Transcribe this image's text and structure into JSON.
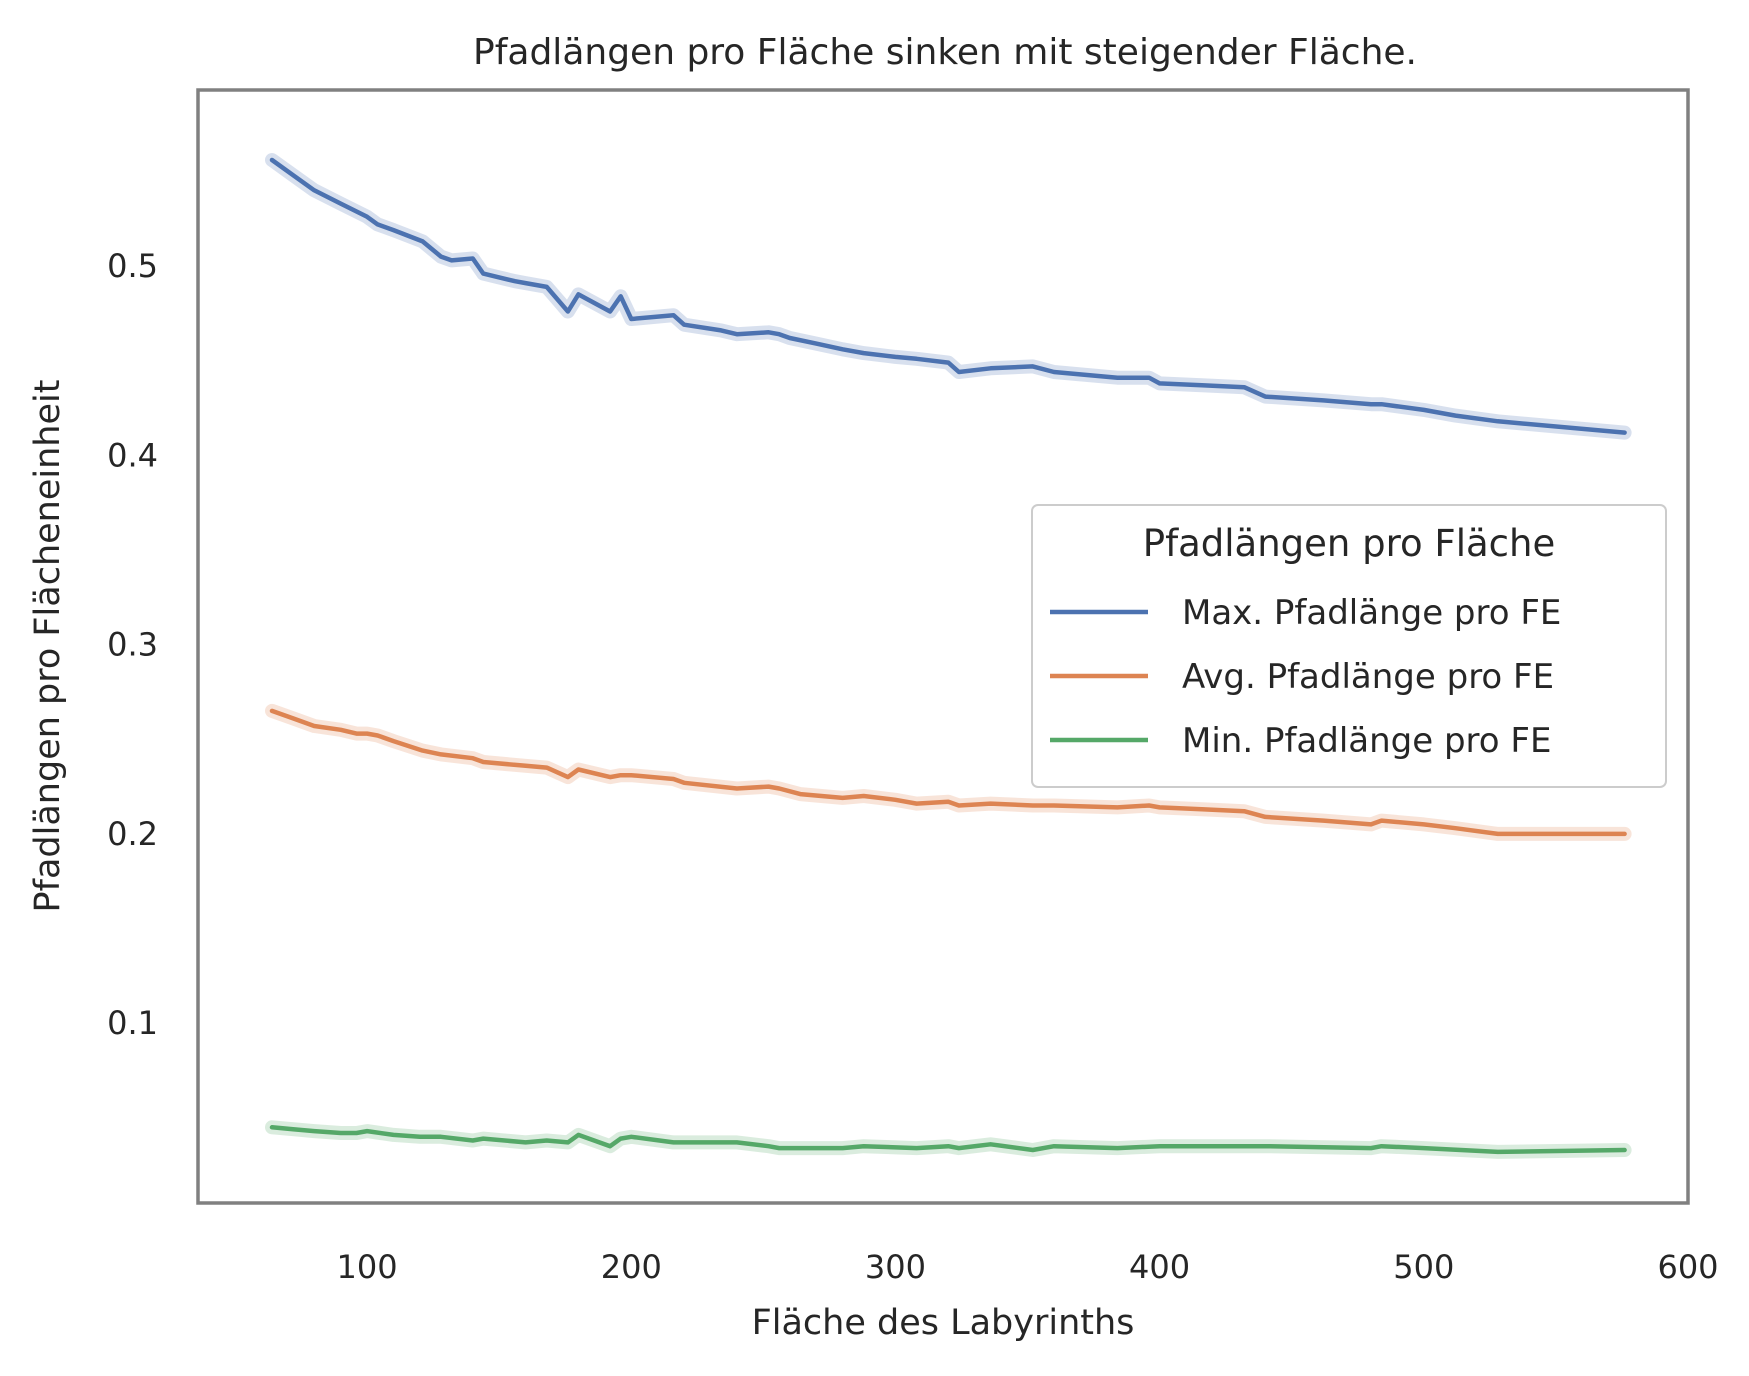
{
  "chart_data": {
    "type": "line",
    "title": "Pfadlängen pro Fläche sinken mit steigender Fläche.",
    "xlabel": "Fläche des Labyrinths",
    "ylabel": "Pfadlängen pro Flächeneinheit",
    "xlim": [
      36,
      600
    ],
    "ylim": [
      0.005,
      0.593
    ],
    "xticks": [
      100,
      200,
      300,
      400,
      500,
      600
    ],
    "yticks": [
      0.1,
      0.2,
      0.3,
      0.4,
      0.5
    ],
    "xtick_labels": [
      "100",
      "200",
      "300",
      "400",
      "500",
      "600"
    ],
    "ytick_labels": [
      "0.1",
      "0.2",
      "0.3",
      "0.4",
      "0.5"
    ],
    "grid": false,
    "legend": {
      "title": "Pfadlängen pro Fläche",
      "position": "center-right"
    },
    "series": [
      {
        "name": "Max. Pfadlänge pro FE",
        "color": "#4c72b0",
        "x": [
          64,
          72,
          80,
          90,
          100,
          104,
          110,
          121,
          128,
          132,
          140,
          144,
          150,
          156,
          160,
          168,
          176,
          180,
          192,
          196,
          200,
          216,
          220,
          234,
          240,
          252,
          256,
          260,
          270,
          280,
          288,
          300,
          308,
          320,
          324,
          336,
          352,
          360,
          384,
          396,
          400,
          416,
          432,
          440,
          462,
          480,
          484,
          500,
          512,
          528,
          576
        ],
        "y": [
          0.556,
          0.548,
          0.54,
          0.533,
          0.526,
          0.522,
          0.519,
          0.513,
          0.505,
          0.503,
          0.504,
          0.496,
          0.494,
          0.492,
          0.491,
          0.489,
          0.476,
          0.485,
          0.476,
          0.484,
          0.472,
          0.474,
          0.469,
          0.466,
          0.464,
          0.465,
          0.464,
          0.462,
          0.459,
          0.456,
          0.454,
          0.452,
          0.451,
          0.449,
          0.444,
          0.446,
          0.447,
          0.444,
          0.441,
          0.441,
          0.438,
          0.437,
          0.436,
          0.431,
          0.429,
          0.427,
          0.427,
          0.424,
          0.421,
          0.418,
          0.412
        ]
      },
      {
        "name": "Avg. Pfadlänge pro FE",
        "color": "#dd8452",
        "x": [
          64,
          72,
          80,
          90,
          96,
          100,
          104,
          110,
          121,
          128,
          140,
          144,
          160,
          168,
          176,
          180,
          192,
          196,
          200,
          216,
          220,
          240,
          252,
          256,
          264,
          280,
          288,
          300,
          308,
          320,
          324,
          336,
          352,
          360,
          384,
          396,
          400,
          416,
          432,
          440,
          462,
          480,
          484,
          500,
          512,
          528,
          540,
          576
        ],
        "y": [
          0.265,
          0.261,
          0.257,
          0.255,
          0.253,
          0.253,
          0.252,
          0.249,
          0.244,
          0.242,
          0.24,
          0.238,
          0.236,
          0.235,
          0.23,
          0.234,
          0.23,
          0.231,
          0.231,
          0.229,
          0.227,
          0.224,
          0.225,
          0.224,
          0.221,
          0.219,
          0.22,
          0.218,
          0.216,
          0.217,
          0.215,
          0.216,
          0.215,
          0.215,
          0.214,
          0.215,
          0.214,
          0.213,
          0.212,
          0.209,
          0.207,
          0.205,
          0.207,
          0.205,
          0.203,
          0.2,
          0.2,
          0.2
        ]
      },
      {
        "name": "Min. Pfadlänge pro FE",
        "color": "#55a868",
        "x": [
          64,
          72,
          80,
          90,
          96,
          100,
          110,
          120,
          128,
          140,
          144,
          160,
          168,
          176,
          180,
          192,
          196,
          200,
          216,
          220,
          240,
          252,
          256,
          264,
          280,
          288,
          308,
          320,
          324,
          336,
          352,
          360,
          384,
          400,
          432,
          440,
          480,
          484,
          500,
          528,
          576
        ],
        "y": [
          0.045,
          0.044,
          0.043,
          0.042,
          0.042,
          0.043,
          0.041,
          0.04,
          0.04,
          0.038,
          0.039,
          0.037,
          0.038,
          0.037,
          0.041,
          0.035,
          0.039,
          0.04,
          0.037,
          0.037,
          0.037,
          0.035,
          0.034,
          0.034,
          0.034,
          0.035,
          0.034,
          0.035,
          0.034,
          0.036,
          0.033,
          0.035,
          0.034,
          0.035,
          0.035,
          0.035,
          0.034,
          0.035,
          0.034,
          0.032,
          0.033
        ]
      }
    ]
  }
}
